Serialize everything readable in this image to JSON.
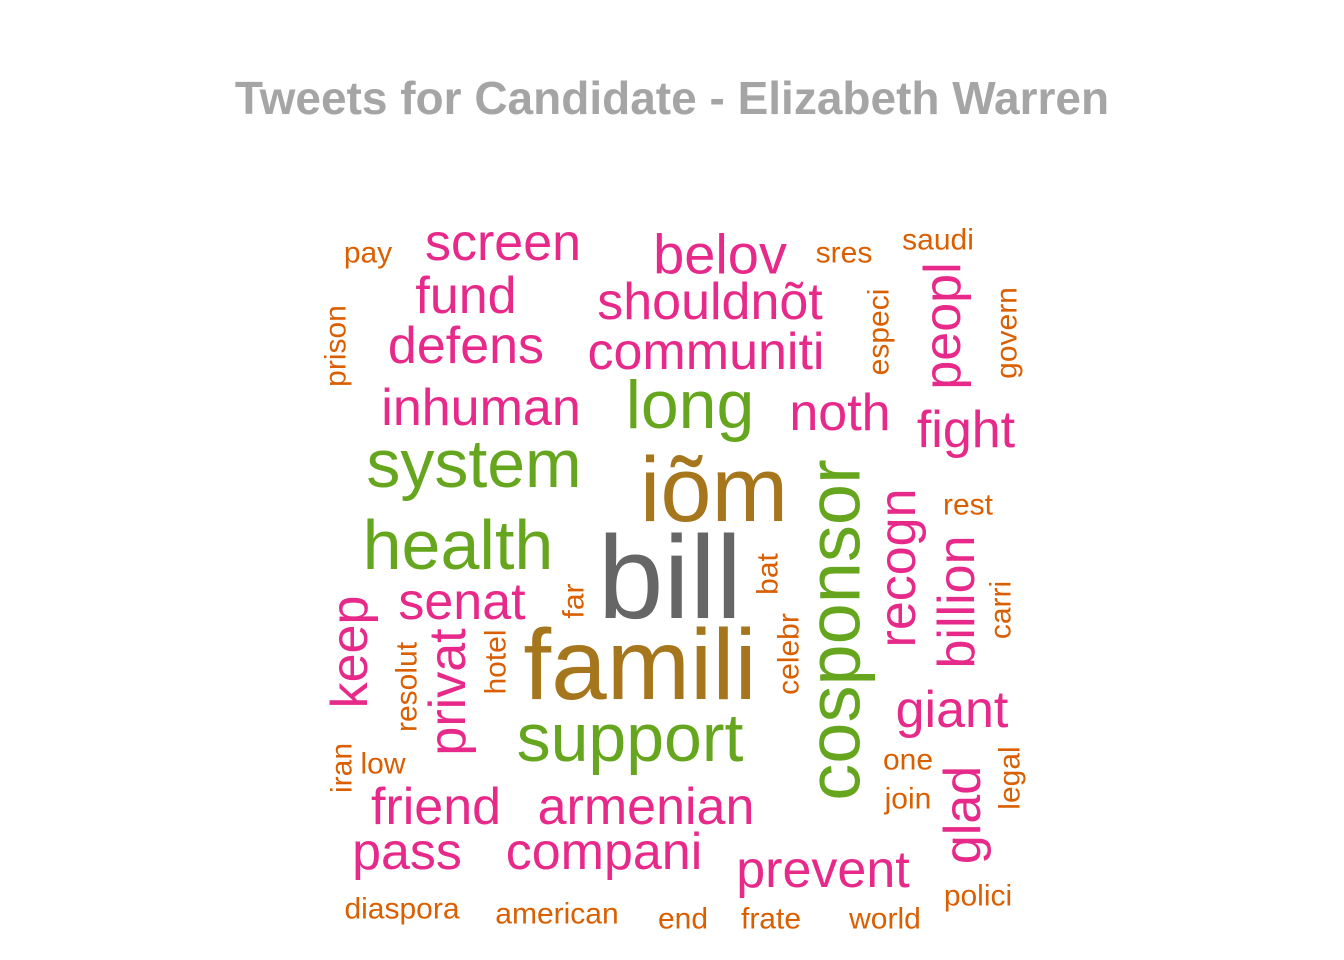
{
  "chart_data": {
    "type": "wordcloud",
    "title": "Tweets for Candidate - Elizabeth Warren",
    "palette": {
      "orange": "#d95f02",
      "pink": "#e7298a",
      "green": "#66a61e",
      "olive": "#a6761d",
      "gray": "#666666"
    },
    "words": [
      {
        "word": "bill",
        "group": "gray",
        "rotated": false
      },
      {
        "word": "iõm",
        "group": "olive",
        "rotated": false
      },
      {
        "word": "famili",
        "group": "olive",
        "rotated": false
      },
      {
        "word": "cosponsor",
        "group": "green",
        "rotated": true
      },
      {
        "word": "health",
        "group": "green",
        "rotated": false
      },
      {
        "word": "system",
        "group": "green",
        "rotated": false
      },
      {
        "word": "support",
        "group": "green",
        "rotated": false
      },
      {
        "word": "long",
        "group": "green",
        "rotated": false
      },
      {
        "word": "belov",
        "group": "pink",
        "rotated": false
      },
      {
        "word": "shouldnõt",
        "group": "pink",
        "rotated": false
      },
      {
        "word": "communiti",
        "group": "pink",
        "rotated": false
      },
      {
        "word": "screen",
        "group": "pink",
        "rotated": false
      },
      {
        "word": "fund",
        "group": "pink",
        "rotated": false
      },
      {
        "word": "defens",
        "group": "pink",
        "rotated": false
      },
      {
        "word": "inhuman",
        "group": "pink",
        "rotated": false
      },
      {
        "word": "noth",
        "group": "pink",
        "rotated": false
      },
      {
        "word": "fight",
        "group": "pink",
        "rotated": false
      },
      {
        "word": "peopl",
        "group": "pink",
        "rotated": true
      },
      {
        "word": "recogn",
        "group": "pink",
        "rotated": true
      },
      {
        "word": "billion",
        "group": "pink",
        "rotated": true
      },
      {
        "word": "senat",
        "group": "pink",
        "rotated": false
      },
      {
        "word": "keep",
        "group": "pink",
        "rotated": true
      },
      {
        "word": "privat",
        "group": "pink",
        "rotated": true
      },
      {
        "word": "giant",
        "group": "pink",
        "rotated": false
      },
      {
        "word": "glad",
        "group": "pink",
        "rotated": true
      },
      {
        "word": "friend",
        "group": "pink",
        "rotated": false
      },
      {
        "word": "armenian",
        "group": "pink",
        "rotated": false
      },
      {
        "word": "pass",
        "group": "pink",
        "rotated": false
      },
      {
        "word": "compani",
        "group": "pink",
        "rotated": false
      },
      {
        "word": "prevent",
        "group": "pink",
        "rotated": false
      },
      {
        "word": "pay",
        "group": "orange",
        "rotated": false
      },
      {
        "word": "sres",
        "group": "orange",
        "rotated": false
      },
      {
        "word": "saudi",
        "group": "orange",
        "rotated": false
      },
      {
        "word": "prison",
        "group": "orange",
        "rotated": true
      },
      {
        "word": "especi",
        "group": "orange",
        "rotated": true
      },
      {
        "word": "govern",
        "group": "orange",
        "rotated": true
      },
      {
        "word": "rest",
        "group": "orange",
        "rotated": false
      },
      {
        "word": "carri",
        "group": "orange",
        "rotated": true
      },
      {
        "word": "bat",
        "group": "orange",
        "rotated": true
      },
      {
        "word": "far",
        "group": "orange",
        "rotated": true
      },
      {
        "word": "celebr",
        "group": "orange",
        "rotated": true
      },
      {
        "word": "hotel",
        "group": "orange",
        "rotated": true
      },
      {
        "word": "resolut",
        "group": "orange",
        "rotated": true
      },
      {
        "word": "iran",
        "group": "orange",
        "rotated": true
      },
      {
        "word": "low",
        "group": "orange",
        "rotated": false
      },
      {
        "word": "one",
        "group": "orange",
        "rotated": false
      },
      {
        "word": "join",
        "group": "orange",
        "rotated": false
      },
      {
        "word": "legal",
        "group": "orange",
        "rotated": true
      },
      {
        "word": "polici",
        "group": "orange",
        "rotated": false
      },
      {
        "word": "diaspora",
        "group": "orange",
        "rotated": false
      },
      {
        "word": "american",
        "group": "orange",
        "rotated": false
      },
      {
        "word": "end",
        "group": "orange",
        "rotated": false
      },
      {
        "word": "frate",
        "group": "orange",
        "rotated": false
      },
      {
        "word": "world",
        "group": "orange",
        "rotated": false
      }
    ]
  }
}
